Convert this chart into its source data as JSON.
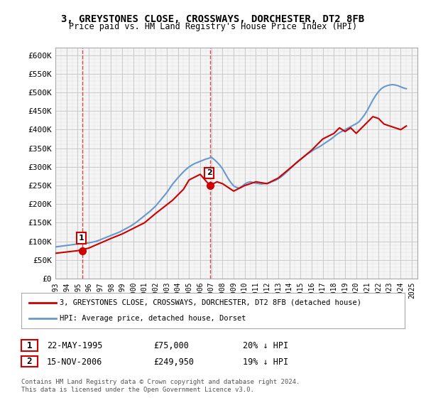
{
  "title": "3, GREYSTONES CLOSE, CROSSWAYS, DORCHESTER, DT2 8FB",
  "subtitle": "Price paid vs. HM Land Registry's House Price Index (HPI)",
  "ylabel_ticks": [
    "£0",
    "£50K",
    "£100K",
    "£150K",
    "£200K",
    "£250K",
    "£300K",
    "£350K",
    "£400K",
    "£450K",
    "£500K",
    "£550K",
    "£600K"
  ],
  "ytick_values": [
    0,
    50000,
    100000,
    150000,
    200000,
    250000,
    300000,
    350000,
    400000,
    450000,
    500000,
    550000,
    600000
  ],
  "xlim_start": 1993.0,
  "xlim_end": 2025.5,
  "ylim_min": 0,
  "ylim_max": 620000,
  "x_ticks": [
    1993,
    1994,
    1995,
    1996,
    1997,
    1998,
    1999,
    2000,
    2001,
    2002,
    2003,
    2004,
    2005,
    2006,
    2007,
    2008,
    2009,
    2010,
    2011,
    2012,
    2013,
    2014,
    2015,
    2016,
    2017,
    2018,
    2019,
    2020,
    2021,
    2022,
    2023,
    2024,
    2025
  ],
  "hpi_color": "#6699cc",
  "price_color": "#cc0000",
  "marker_color": "#cc0000",
  "annotation_color": "#cc0000",
  "grid_color": "#cccccc",
  "background_color": "#ffffff",
  "plot_bg_color": "#f5f5f5",
  "legend_label_price": "3, GREYSTONES CLOSE, CROSSWAYS, DORCHESTER, DT2 8FB (detached house)",
  "legend_label_hpi": "HPI: Average price, detached house, Dorset",
  "sale1_label": "1",
  "sale1_date": "22-MAY-1995",
  "sale1_price": "£75,000",
  "sale1_hpi": "20% ↓ HPI",
  "sale1_year": 1995.39,
  "sale1_value": 75000,
  "sale2_label": "2",
  "sale2_date": "15-NOV-2006",
  "sale2_price": "£249,950",
  "sale2_hpi": "19% ↓ HPI",
  "sale2_year": 2006.87,
  "sale2_value": 249950,
  "footer": "Contains HM Land Registry data © Crown copyright and database right 2024.\nThis data is licensed under the Open Government Licence v3.0.",
  "hpi_x": [
    1993,
    1993.25,
    1993.5,
    1993.75,
    1994,
    1994.25,
    1994.5,
    1994.75,
    1995,
    1995.25,
    1995.5,
    1995.75,
    1996,
    1996.25,
    1996.5,
    1996.75,
    1997,
    1997.25,
    1997.5,
    1997.75,
    1998,
    1998.25,
    1998.5,
    1998.75,
    1999,
    1999.25,
    1999.5,
    1999.75,
    2000,
    2000.25,
    2000.5,
    2000.75,
    2001,
    2001.25,
    2001.5,
    2001.75,
    2002,
    2002.25,
    2002.5,
    2002.75,
    2003,
    2003.25,
    2003.5,
    2003.75,
    2004,
    2004.25,
    2004.5,
    2004.75,
    2005,
    2005.25,
    2005.5,
    2005.75,
    2006,
    2006.25,
    2006.5,
    2006.75,
    2007,
    2007.25,
    2007.5,
    2007.75,
    2008,
    2008.25,
    2008.5,
    2008.75,
    2009,
    2009.25,
    2009.5,
    2009.75,
    2010,
    2010.25,
    2010.5,
    2010.75,
    2011,
    2011.25,
    2011.5,
    2011.75,
    2012,
    2012.25,
    2012.5,
    2012.75,
    2013,
    2013.25,
    2013.5,
    2013.75,
    2014,
    2014.25,
    2014.5,
    2014.75,
    2015,
    2015.25,
    2015.5,
    2015.75,
    2016,
    2016.25,
    2016.5,
    2016.75,
    2017,
    2017.25,
    2017.5,
    2017.75,
    2018,
    2018.25,
    2018.5,
    2018.75,
    2019,
    2019.25,
    2019.5,
    2019.75,
    2020,
    2020.25,
    2020.5,
    2020.75,
    2021,
    2021.25,
    2021.5,
    2021.75,
    2022,
    2022.25,
    2022.5,
    2022.75,
    2023,
    2023.25,
    2023.5,
    2023.75,
    2024,
    2024.25,
    2024.5
  ],
  "hpi_y": [
    85000,
    86000,
    87000,
    88000,
    89000,
    90000,
    91000,
    92000,
    93000,
    94000,
    94500,
    95000,
    96000,
    97500,
    99000,
    101000,
    104000,
    107000,
    110000,
    113000,
    116000,
    119000,
    122000,
    125000,
    129000,
    133000,
    137000,
    141000,
    146000,
    151000,
    157000,
    163000,
    169000,
    175000,
    181000,
    188000,
    195000,
    204000,
    213000,
    222000,
    231000,
    242000,
    253000,
    262000,
    271000,
    279000,
    287000,
    294000,
    300000,
    305000,
    309000,
    312000,
    315000,
    318000,
    321000,
    323000,
    326000,
    320000,
    313000,
    305000,
    295000,
    282000,
    269000,
    258000,
    249000,
    245000,
    243000,
    248000,
    254000,
    258000,
    260000,
    258000,
    256000,
    255000,
    254000,
    255000,
    256000,
    258000,
    261000,
    264000,
    268000,
    273000,
    279000,
    286000,
    293000,
    300000,
    308000,
    315000,
    321000,
    326000,
    332000,
    337000,
    342000,
    347000,
    351000,
    355000,
    360000,
    365000,
    370000,
    375000,
    381000,
    387000,
    392000,
    396000,
    400000,
    404000,
    408000,
    412000,
    416000,
    421000,
    430000,
    440000,
    452000,
    466000,
    480000,
    492000,
    502000,
    510000,
    515000,
    518000,
    520000,
    521000,
    520000,
    518000,
    515000,
    512000,
    510000
  ],
  "price_x": [
    1993.0,
    1995.0,
    1996.0,
    1997.0,
    1998.0,
    1999.0,
    2000.0,
    2001.0,
    2002.0,
    2003.5,
    2004.5,
    2005.0,
    2006.0,
    2006.87,
    2007.5,
    2008.0,
    2009.0,
    2010.0,
    2011.0,
    2012.0,
    2013.0,
    2014.0,
    2015.0,
    2016.0,
    2016.5,
    2017.0,
    2018.0,
    2018.5,
    2019.0,
    2019.5,
    2020.0,
    2021.0,
    2021.5,
    2022.0,
    2022.5,
    2023.0,
    2023.5,
    2024.0,
    2024.5
  ],
  "price_y": [
    68000,
    75000,
    82000,
    95000,
    108000,
    120000,
    135000,
    150000,
    175000,
    210000,
    240000,
    265000,
    280000,
    249950,
    260000,
    255000,
    235000,
    250000,
    260000,
    255000,
    270000,
    295000,
    320000,
    345000,
    360000,
    375000,
    390000,
    405000,
    395000,
    405000,
    390000,
    420000,
    435000,
    430000,
    415000,
    410000,
    405000,
    400000,
    410000
  ]
}
